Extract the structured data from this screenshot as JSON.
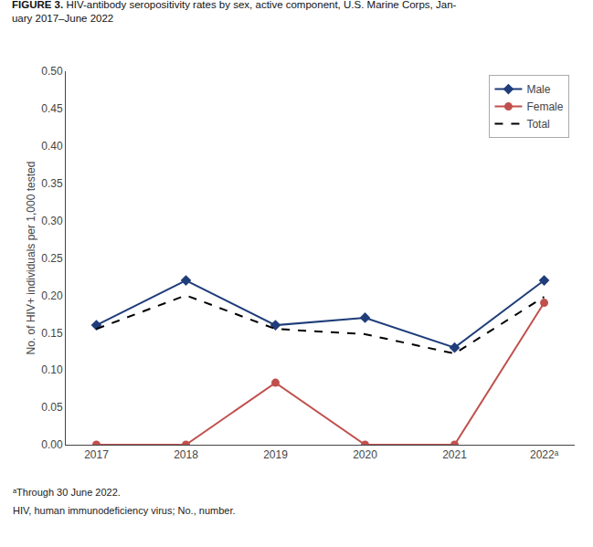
{
  "chart_data": {
    "type": "line",
    "title": "FIGURE 3. HIV-antibody seropositivity rates by sex, active component, U.S. Marine Corps, Jan-\nuary 2017–June 2022",
    "ylabel": "No. of HIV+ individuals per 1,000 tested",
    "categories": [
      "2017",
      "2018",
      "2019",
      "2020",
      "2021",
      "2022ᵃ"
    ],
    "series": [
      {
        "name": "Male",
        "color": "#1f3d7a",
        "marker": "diamond",
        "line_style": "solid",
        "values": [
          0.16,
          0.22,
          0.16,
          0.17,
          0.13,
          0.22
        ]
      },
      {
        "name": "Female",
        "color": "#c0504d",
        "marker": "circle",
        "line_style": "solid",
        "values": [
          0.0,
          0.0,
          0.083,
          0.0,
          0.0,
          0.19
        ]
      },
      {
        "name": "Total",
        "color": "#000000",
        "marker": "none",
        "line_style": "dashed",
        "values": [
          0.155,
          0.2,
          0.155,
          0.148,
          0.122,
          0.198
        ]
      }
    ],
    "ylim": [
      0.0,
      0.5
    ],
    "yticks": [
      {
        "value": 0.0,
        "label": "0.00"
      },
      {
        "value": 0.05,
        "label": "0.05"
      },
      {
        "value": 0.1,
        "label": "0.10"
      },
      {
        "value": 0.15,
        "label": "0.15"
      },
      {
        "value": 0.2,
        "label": "0.20"
      },
      {
        "value": 0.25,
        "label": "0.25"
      },
      {
        "value": 0.3,
        "label": "0.30"
      },
      {
        "value": 0.35,
        "label": "0.35"
      },
      {
        "value": 0.4,
        "label": "0.40"
      },
      {
        "value": 0.45,
        "label": "0.45"
      },
      {
        "value": 0.5,
        "label": "0.50"
      }
    ],
    "annotations": [
      "ᵃThrough 30 June 2022.",
      "HIV, human immunodeficiency virus; No., number."
    ],
    "grid": false,
    "legend": "upper right"
  }
}
